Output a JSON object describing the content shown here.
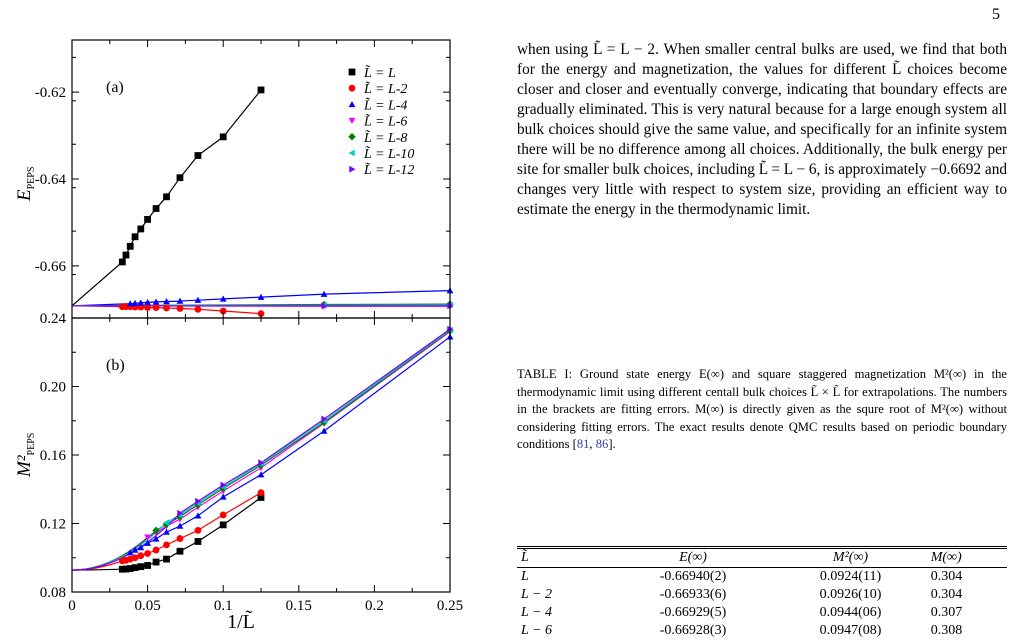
{
  "page_number": "5",
  "body_text": "when using L̃ = L − 2. When smaller central bulks are used, we find that both for the energy and magnetization, the values for different L̃ choices become closer and closer and eventually converge, indicating that boundary effects are gradually eliminated. This is very natural because for a large enough system all bulk choices should give the same value, and specifically for an infinite system there will be no difference among all choices. Additionally, the bulk energy per site for smaller bulk choices, including L̃ = L − 6, is approximately −0.6692 and changes very little with respect to system size, providing an efficient way to estimate the energy in the thermodynamic limit.",
  "caption": {
    "text": "TABLE I: Ground state energy E(∞) and square staggered magnetization M²(∞) in the thermodynamic limit using different centall bulk choices L̃ × L̃ for extrapolations. The numbers in the brackets are fitting errors. M(∞) is directly given as the squre root of M²(∞) without considering fitting errors. The exact results denote QMC results based on periodic boundary conditions [",
    "ref1": "81",
    "sep": ", ",
    "ref2": "86",
    "end": "]."
  },
  "table": {
    "headers": [
      "L̃",
      "E(∞)",
      "M²(∞)",
      "M(∞)"
    ],
    "rows": [
      [
        "L",
        "-0.66940(2)",
        "0.0924(11)",
        "0.304"
      ],
      [
        "L − 2",
        "-0.66933(6)",
        "0.0926(10)",
        "0.304"
      ],
      [
        "L − 4",
        "-0.66929(5)",
        "0.0944(06)",
        "0.307"
      ],
      [
        "L − 6",
        "-0.66928(3)",
        "0.0947(08)",
        "0.308"
      ]
    ]
  },
  "chart_data": [
    {
      "type": "line",
      "panel_label": "(a)",
      "ylabel": "E_PEPS",
      "ylim": [
        -0.672,
        -0.608
      ],
      "xlim": [
        0,
        0.25
      ],
      "y_ticks": [
        "-0.62",
        "-0.64",
        "-0.66"
      ],
      "y_tick_values": [
        -0.62,
        -0.64,
        -0.66
      ],
      "legend_position": "top-right",
      "series": [
        {
          "name": "L̃ = L",
          "color": "#000000",
          "marker": "square",
          "x": [
            0.125,
            0.1,
            0.0833,
            0.0714,
            0.0625,
            0.0556,
            0.05,
            0.0455,
            0.0417,
            0.0385,
            0.0357,
            0.0333
          ],
          "y": [
            -0.6195,
            -0.6303,
            -0.6346,
            -0.6397,
            -0.6441,
            -0.6468,
            -0.6493,
            -0.6515,
            -0.6533,
            -0.6555,
            -0.6575,
            -0.6591
          ]
        },
        {
          "name": "L̃ = L-2",
          "color": "#ff0000",
          "marker": "circle",
          "x": [
            0.125,
            0.1,
            0.0833,
            0.0714,
            0.0625,
            0.0556,
            0.05,
            0.0455,
            0.0417,
            0.0385,
            0.0357,
            0.0333
          ],
          "y": [
            -0.671,
            -0.6704,
            -0.67,
            -0.6698,
            -0.6697,
            -0.6696,
            -0.6696,
            -0.6695,
            -0.6695,
            -0.6694,
            -0.6694,
            -0.6694
          ]
        },
        {
          "name": "L̃ = L-4",
          "color": "#0000ff",
          "marker": "triangle-up",
          "x": [
            0.25,
            0.1667,
            0.125,
            0.1,
            0.0833,
            0.0714,
            0.0625,
            0.0556,
            0.05,
            0.0455,
            0.0417,
            0.0385
          ],
          "y": [
            -0.6657,
            -0.6665,
            -0.6672,
            -0.6676,
            -0.6679,
            -0.6681,
            -0.6682,
            -0.6683,
            -0.6684,
            -0.6685,
            -0.6686,
            -0.6687
          ]
        },
        {
          "name": "L̃ = L-6",
          "color": "#ff00ff",
          "marker": "triangle-down",
          "x": [
            0.25,
            0.1667
          ],
          "y": [
            -0.6693,
            -0.6693
          ]
        },
        {
          "name": "L̃ = L-8",
          "color": "#008000",
          "marker": "diamond",
          "x": [
            0.25,
            0.1667
          ],
          "y": [
            -0.6688,
            -0.6689
          ]
        },
        {
          "name": "L̃ = L-10",
          "color": "#00cccc",
          "marker": "triangle-left",
          "x": [
            0.25,
            0.1667
          ],
          "y": [
            -0.669,
            -0.6691
          ]
        },
        {
          "name": "L̃ = L-12",
          "color": "#8000ff",
          "marker": "triangle-right",
          "x": [
            0.25,
            0.1667
          ],
          "y": [
            -0.6692,
            -0.6692
          ]
        }
      ]
    },
    {
      "type": "line",
      "panel_label": "(b)",
      "ylabel": "M²_PEPS",
      "xlabel": "1/L̃",
      "ylim": [
        0.08,
        0.24
      ],
      "xlim": [
        0,
        0.25
      ],
      "x_ticks": [
        "0",
        "0.05",
        "0.1",
        "0.15",
        "0.2",
        "0.25"
      ],
      "x_tick_values": [
        0,
        0.05,
        0.1,
        0.15,
        0.2,
        0.25
      ],
      "y_ticks": [
        "0.08",
        "0.12",
        "0.16",
        "0.20",
        "0.24"
      ],
      "y_tick_values": [
        0.08,
        0.12,
        0.16,
        0.2,
        0.24
      ],
      "series": [
        {
          "name": "L̃ = L",
          "color": "#000000",
          "marker": "square",
          "x": [
            0.125,
            0.1,
            0.0833,
            0.0714,
            0.0625,
            0.0556,
            0.05,
            0.0455,
            0.0417,
            0.0385,
            0.0357,
            0.0333
          ],
          "y": [
            0.1352,
            0.1192,
            0.1095,
            0.1038,
            0.0992,
            0.0975,
            0.0955,
            0.0948,
            0.0942,
            0.0937,
            0.0934,
            0.0933
          ]
        },
        {
          "name": "L̃ = L-2",
          "color": "#ff0000",
          "marker": "circle",
          "x": [
            0.125,
            0.1,
            0.0833,
            0.0714,
            0.0625,
            0.0556,
            0.05,
            0.0455,
            0.0417,
            0.0385,
            0.0357,
            0.0333
          ],
          "y": [
            0.138,
            0.125,
            0.116,
            0.1112,
            0.1075,
            0.1045,
            0.1025,
            0.1012,
            0.1,
            0.0992,
            0.0985,
            0.0982
          ]
        },
        {
          "name": "L̃ = L-4",
          "color": "#0000ff",
          "marker": "triangle-up",
          "x": [
            0.25,
            0.1667,
            0.125,
            0.1,
            0.0833,
            0.0714,
            0.0625,
            0.0556,
            0.05,
            0.0455,
            0.0417,
            0.0385
          ],
          "y": [
            0.229,
            0.174,
            0.1485,
            0.1355,
            0.1245,
            0.1185,
            0.115,
            0.111,
            0.1085,
            0.106,
            0.1045,
            0.103
          ]
        },
        {
          "name": "L̃ = L-6",
          "color": "#ff00ff",
          "marker": "triangle-down",
          "x": [
            0.25,
            0.1667,
            0.125,
            0.1,
            0.0833,
            0.0714,
            0.0625,
            0.0556,
            0.05
          ],
          "y": [
            0.232,
            0.1785,
            0.1525,
            0.139,
            0.1295,
            0.1225,
            0.1185,
            0.1145,
            0.112
          ]
        },
        {
          "name": "L̃ = L-8",
          "color": "#008000",
          "marker": "diamond",
          "x": [
            0.25,
            0.1667,
            0.125,
            0.1,
            0.0833,
            0.0714,
            0.0625,
            0.0556
          ],
          "y": [
            0.2325,
            0.179,
            0.154,
            0.1405,
            0.131,
            0.124,
            0.1195,
            0.116
          ]
        },
        {
          "name": "L̃ = L-10",
          "color": "#00cccc",
          "marker": "triangle-left",
          "x": [
            0.25,
            0.1667,
            0.125,
            0.1,
            0.0833,
            0.0714,
            0.0625
          ],
          "y": [
            0.233,
            0.18,
            0.155,
            0.1415,
            0.132,
            0.125,
            0.1205
          ]
        },
        {
          "name": "L̃ = L-12",
          "color": "#8000ff",
          "marker": "triangle-right",
          "x": [
            0.25,
            0.1667,
            0.125,
            0.1,
            0.0833,
            0.0714
          ],
          "y": [
            0.2335,
            0.181,
            0.1555,
            0.1425,
            0.133,
            0.126
          ]
        }
      ]
    }
  ]
}
